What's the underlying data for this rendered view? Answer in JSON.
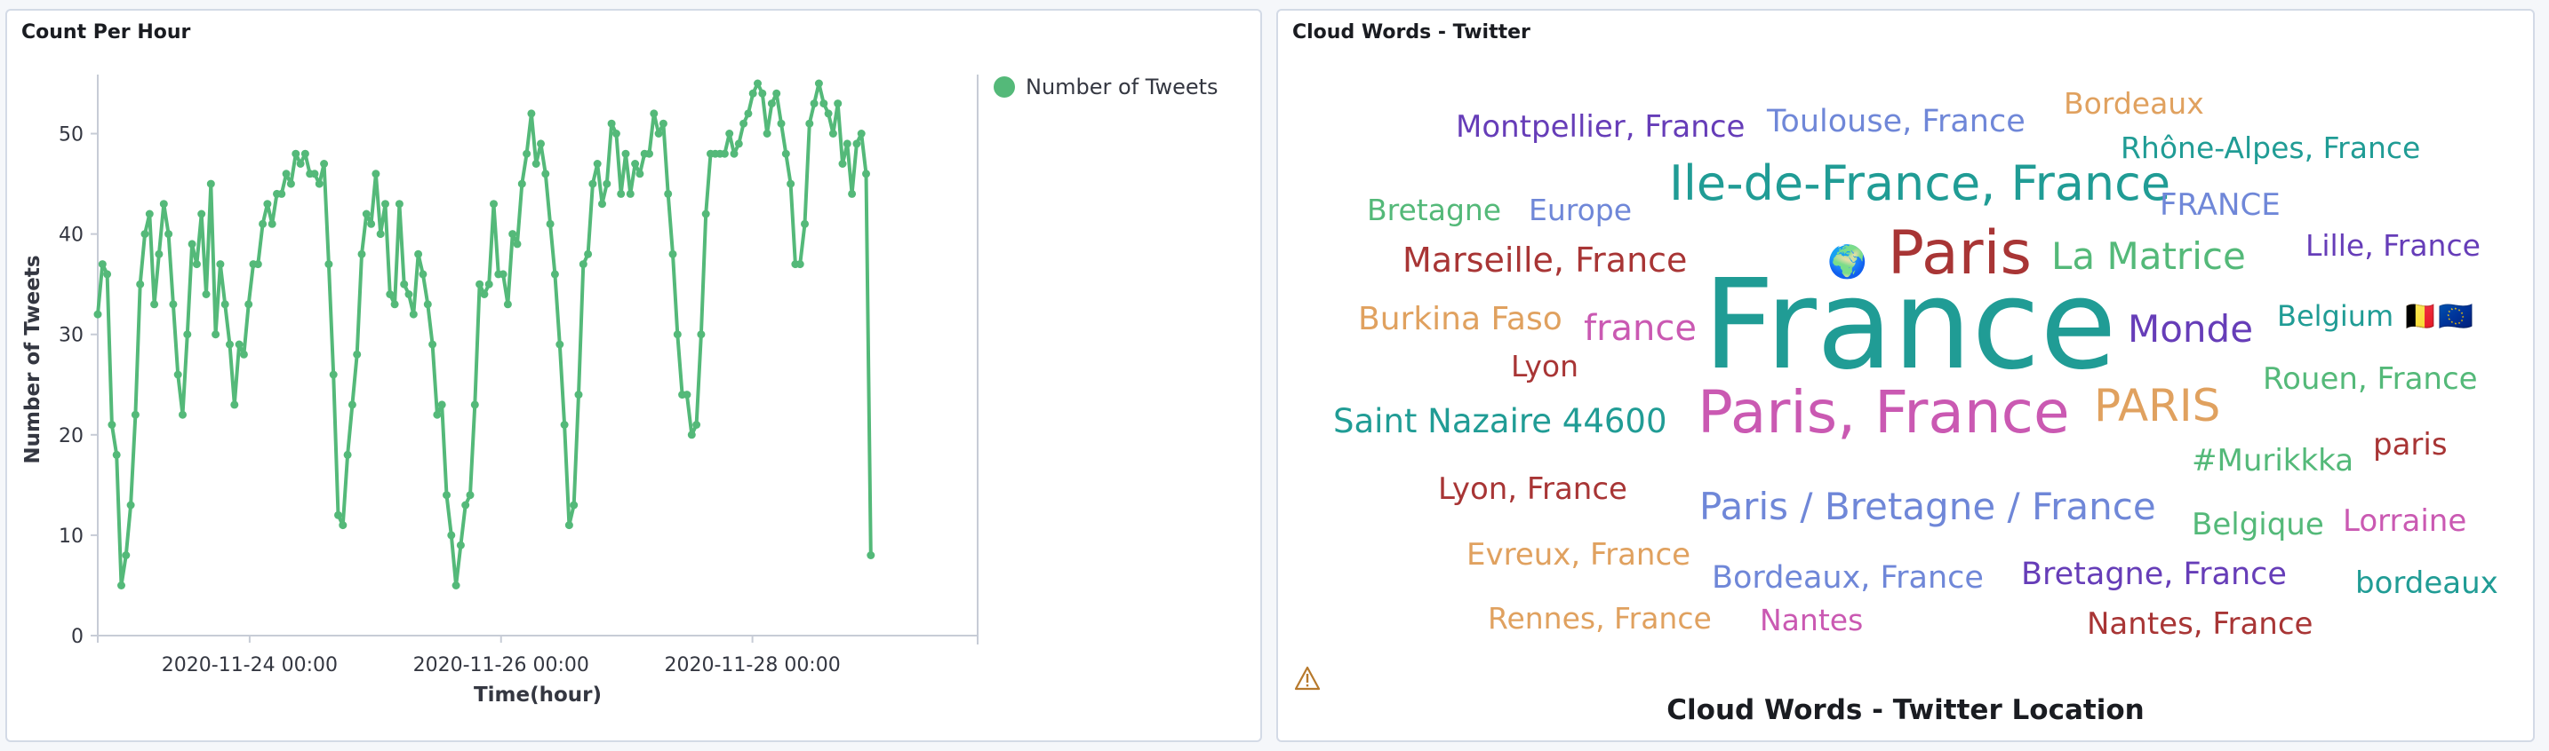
{
  "colors": {
    "series": "#54b979",
    "axis": "#c7ccd6",
    "text": "#343741"
  },
  "left_panel": {
    "title": "Count Per Hour",
    "legend_label": "Number of Tweets"
  },
  "chart_data": {
    "type": "line",
    "title": "Count Per Hour",
    "xlabel": "Time(hour)",
    "ylabel": "Number of Tweets",
    "x_tick_labels": [
      "2020-11-24 00:00",
      "2020-11-26 00:00",
      "2020-11-28 00:00"
    ],
    "y_ticks": [
      0,
      10,
      20,
      30,
      40,
      50
    ],
    "ylim": [
      0,
      55
    ],
    "xlim_hours": [
      0,
      168
    ],
    "legend": "top-right",
    "series": [
      {
        "name": "Number of Tweets",
        "color": "#54b979",
        "points": [
          [
            0.0,
            32
          ],
          [
            0.9,
            37
          ],
          [
            1.8,
            36
          ],
          [
            2.7,
            21
          ],
          [
            3.6,
            18
          ],
          [
            4.5,
            5
          ],
          [
            5.4,
            8
          ],
          [
            6.3,
            13
          ],
          [
            7.2,
            22
          ],
          [
            8.1,
            35
          ],
          [
            9.0,
            40
          ],
          [
            9.9,
            42
          ],
          [
            10.8,
            33
          ],
          [
            11.7,
            38
          ],
          [
            12.6,
            43
          ],
          [
            13.5,
            40
          ],
          [
            14.4,
            33
          ],
          [
            15.3,
            26
          ],
          [
            16.2,
            22
          ],
          [
            17.1,
            30
          ],
          [
            18.0,
            39
          ],
          [
            18.9,
            37
          ],
          [
            19.8,
            42
          ],
          [
            20.7,
            34
          ],
          [
            21.6,
            45
          ],
          [
            22.5,
            30
          ],
          [
            23.4,
            37
          ],
          [
            24.3,
            33
          ],
          [
            25.2,
            29
          ],
          [
            26.1,
            23
          ],
          [
            27.0,
            29
          ],
          [
            27.9,
            28
          ],
          [
            28.8,
            33
          ],
          [
            29.7,
            37
          ],
          [
            30.6,
            37
          ],
          [
            31.5,
            41
          ],
          [
            32.4,
            43
          ],
          [
            33.3,
            41
          ],
          [
            34.2,
            44
          ],
          [
            35.1,
            44
          ],
          [
            36.0,
            46
          ],
          [
            36.9,
            45
          ],
          [
            37.8,
            48
          ],
          [
            38.7,
            47
          ],
          [
            39.6,
            48
          ],
          [
            40.5,
            46
          ],
          [
            41.4,
            46
          ],
          [
            42.3,
            45
          ],
          [
            43.2,
            47
          ],
          [
            44.1,
            37
          ],
          [
            45.0,
            26
          ],
          [
            45.9,
            12
          ],
          [
            46.8,
            11
          ],
          [
            47.7,
            18
          ],
          [
            48.6,
            23
          ],
          [
            49.5,
            28
          ],
          [
            50.4,
            38
          ],
          [
            51.3,
            42
          ],
          [
            52.2,
            41
          ],
          [
            53.1,
            46
          ],
          [
            54.0,
            40
          ],
          [
            54.9,
            43
          ],
          [
            55.8,
            34
          ],
          [
            56.7,
            33
          ],
          [
            57.6,
            43
          ],
          [
            58.5,
            35
          ],
          [
            59.4,
            34
          ],
          [
            60.3,
            32
          ],
          [
            61.2,
            38
          ],
          [
            62.1,
            36
          ],
          [
            63.0,
            33
          ],
          [
            63.9,
            29
          ],
          [
            64.8,
            22
          ],
          [
            65.7,
            23
          ],
          [
            66.6,
            14
          ],
          [
            67.5,
            10
          ],
          [
            68.4,
            5
          ],
          [
            69.3,
            9
          ],
          [
            70.2,
            13
          ],
          [
            71.1,
            14
          ],
          [
            72.0,
            23
          ],
          [
            72.9,
            35
          ],
          [
            73.8,
            34
          ],
          [
            74.7,
            35
          ],
          [
            75.6,
            43
          ],
          [
            76.5,
            36
          ],
          [
            77.4,
            36
          ],
          [
            78.3,
            33
          ],
          [
            79.2,
            40
          ],
          [
            80.1,
            39
          ],
          [
            81.0,
            45
          ],
          [
            81.9,
            48
          ],
          [
            82.8,
            52
          ],
          [
            83.7,
            47
          ],
          [
            84.6,
            49
          ],
          [
            85.5,
            46
          ],
          [
            86.4,
            41
          ],
          [
            87.3,
            36
          ],
          [
            88.2,
            29
          ],
          [
            89.1,
            21
          ],
          [
            90.0,
            11
          ],
          [
            90.9,
            13
          ],
          [
            91.8,
            24
          ],
          [
            92.7,
            37
          ],
          [
            93.6,
            38
          ],
          [
            94.5,
            45
          ],
          [
            95.4,
            47
          ],
          [
            96.3,
            43
          ],
          [
            97.2,
            45
          ],
          [
            98.1,
            51
          ],
          [
            99.0,
            50
          ],
          [
            99.9,
            44
          ],
          [
            100.8,
            48
          ],
          [
            101.7,
            44
          ],
          [
            102.6,
            47
          ],
          [
            103.5,
            46
          ],
          [
            104.4,
            48
          ],
          [
            105.3,
            48
          ],
          [
            106.2,
            52
          ],
          [
            107.1,
            50
          ],
          [
            108.0,
            51
          ],
          [
            108.9,
            44
          ],
          [
            109.8,
            38
          ],
          [
            110.7,
            30
          ],
          [
            111.6,
            24
          ],
          [
            112.5,
            24
          ],
          [
            113.4,
            20
          ],
          [
            114.3,
            21
          ],
          [
            115.2,
            30
          ],
          [
            116.1,
            42
          ],
          [
            117.0,
            48
          ],
          [
            117.9,
            48
          ],
          [
            118.8,
            48
          ],
          [
            119.7,
            48
          ],
          [
            120.6,
            50
          ],
          [
            121.5,
            48
          ],
          [
            122.4,
            49
          ],
          [
            123.3,
            51
          ],
          [
            124.2,
            52
          ],
          [
            125.1,
            54
          ],
          [
            126.0,
            55
          ],
          [
            126.9,
            54
          ],
          [
            127.8,
            50
          ],
          [
            128.7,
            53
          ],
          [
            129.6,
            54
          ],
          [
            130.5,
            51
          ],
          [
            131.4,
            48
          ],
          [
            132.3,
            45
          ],
          [
            133.2,
            37
          ],
          [
            134.1,
            37
          ],
          [
            135.0,
            41
          ],
          [
            135.9,
            51
          ],
          [
            136.8,
            53
          ],
          [
            137.7,
            55
          ],
          [
            138.6,
            53
          ],
          [
            139.5,
            52
          ],
          [
            140.4,
            50
          ],
          [
            141.3,
            53
          ],
          [
            142.2,
            47
          ],
          [
            143.1,
            49
          ],
          [
            144.0,
            44
          ],
          [
            144.9,
            49
          ],
          [
            145.8,
            50
          ],
          [
            146.7,
            46
          ],
          [
            147.6,
            8
          ]
        ]
      }
    ]
  },
  "right_panel": {
    "title": "Cloud Words - Twitter",
    "caption": "Cloud Words - Twitter Location",
    "warning_icon": "warning-triangle-icon"
  },
  "word_cloud": {
    "words": [
      {
        "text": "France",
        "color": "#209c95"
      },
      {
        "text": "Paris, France",
        "color": "#ca59b2"
      },
      {
        "text": "Paris",
        "color": "#a83535"
      },
      {
        "text": "Ile-de-France, France",
        "color": "#209c95"
      },
      {
        "text": "PARIS",
        "color": "#e0a15f"
      },
      {
        "text": "La Matrice",
        "color": "#54b979"
      },
      {
        "text": "Paris / Bretagne / France",
        "color": "#6f87d8"
      },
      {
        "text": "Monde",
        "color": "#663db8"
      },
      {
        "text": "Toulouse, France",
        "color": "#6f87d8"
      },
      {
        "text": "Montpellier, France",
        "color": "#663db8"
      },
      {
        "text": "Marseille, France",
        "color": "#a83535"
      },
      {
        "text": "Rhône-Alpes, France",
        "color": "#209c95"
      },
      {
        "text": "Saint Nazaire 44600",
        "color": "#209c95"
      },
      {
        "text": "france",
        "color": "#ca59b2"
      },
      {
        "text": "Rouen, France",
        "color": "#54b979"
      },
      {
        "text": "Bordeaux",
        "color": "#e0a15f"
      },
      {
        "text": "Burkina Faso",
        "color": "#e0a15f"
      },
      {
        "text": "FRANCE",
        "color": "#6f87d8"
      },
      {
        "text": "Lille, France",
        "color": "#663db8"
      },
      {
        "text": "Bretagne",
        "color": "#54b979"
      },
      {
        "text": "Europe",
        "color": "#6f87d8"
      },
      {
        "text": "Belgium 🇧🇪🇪🇺",
        "color": "#209c95"
      },
      {
        "text": "Lyon, France",
        "color": "#a83535"
      },
      {
        "text": "Bordeaux, France",
        "color": "#6f87d8"
      },
      {
        "text": "Bretagne, France",
        "color": "#663db8"
      },
      {
        "text": "#Murikkka",
        "color": "#54b979"
      },
      {
        "text": "Evreux, France",
        "color": "#e0a15f"
      },
      {
        "text": "Rennes, France",
        "color": "#e0a15f"
      },
      {
        "text": "Nantes, France",
        "color": "#a83535"
      },
      {
        "text": "Lyon",
        "color": "#a83535"
      },
      {
        "text": "paris",
        "color": "#a83535"
      },
      {
        "text": "Belgique",
        "color": "#54b979"
      },
      {
        "text": "Lorraine",
        "color": "#ca59b2"
      },
      {
        "text": "bordeaux",
        "color": "#209c95"
      },
      {
        "text": "Nantes",
        "color": "#ca59b2"
      },
      {
        "text": "🌍",
        "color": "#1a6fb5"
      }
    ]
  }
}
